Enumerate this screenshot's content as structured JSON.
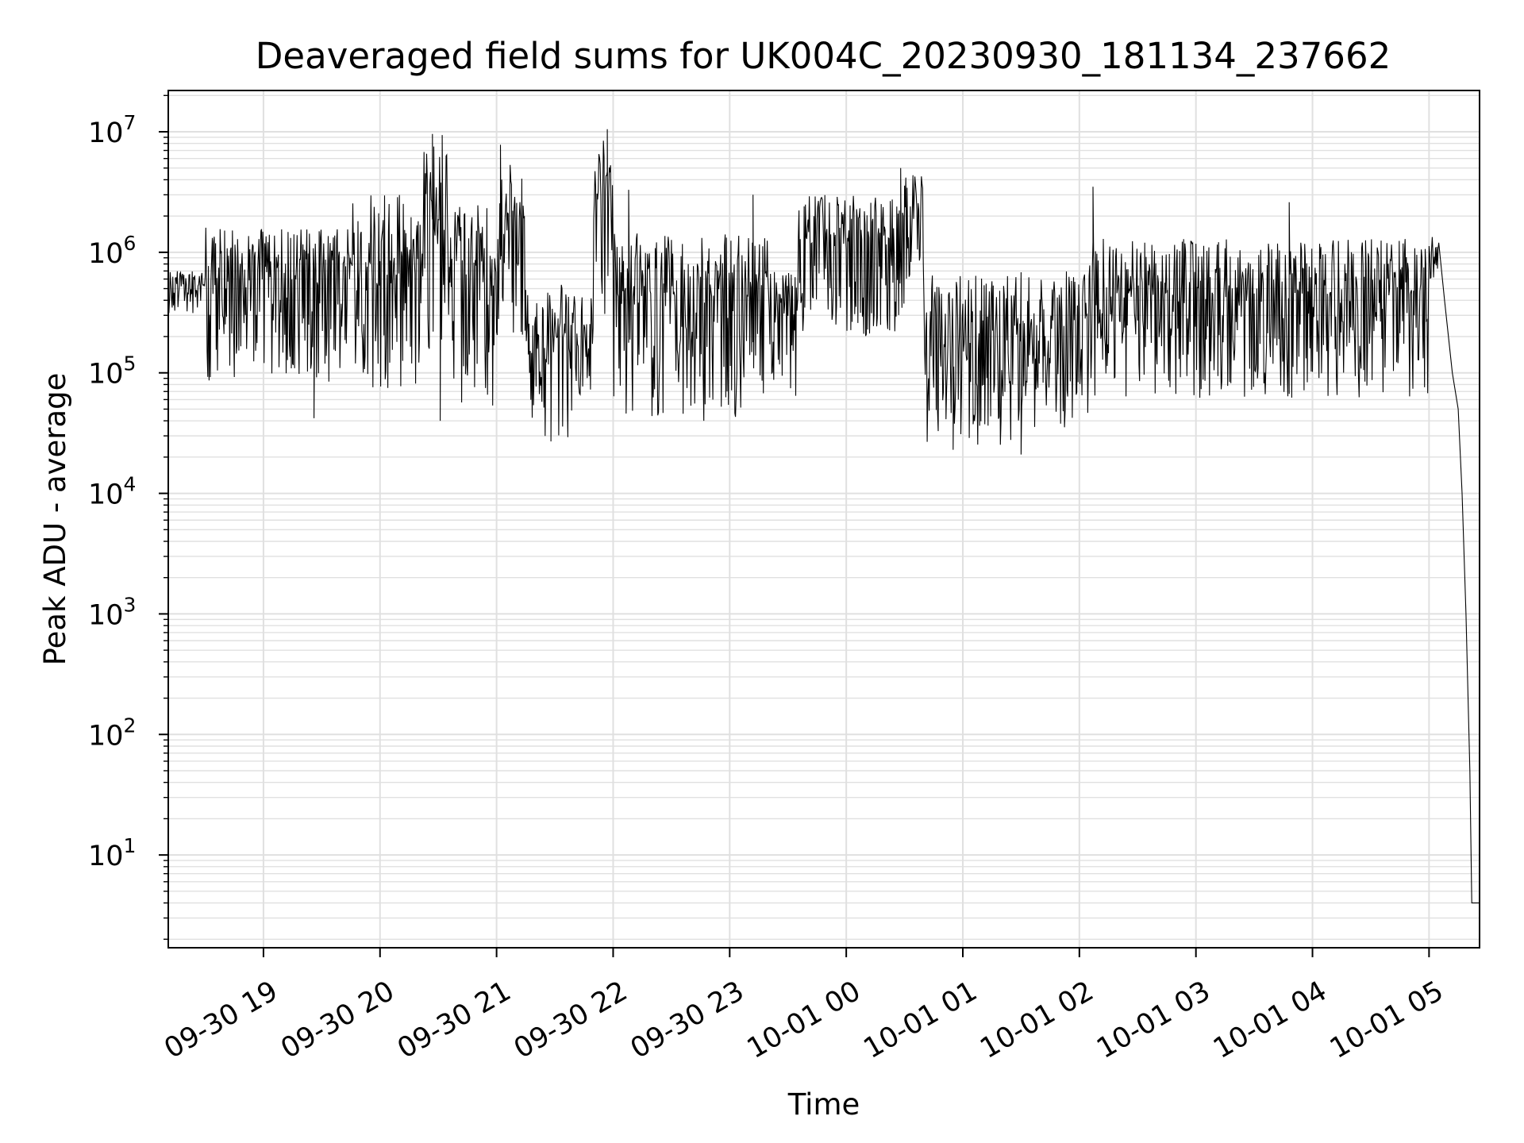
{
  "chart_data": {
    "type": "line",
    "title": "Deaveraged field sums for UK004C_20230930_181134_237662",
    "xlabel": "Time",
    "ylabel": "Peak ADU - average",
    "yscale": "log",
    "grid": true,
    "line_color": "#000000",
    "grid_color": "#e0e0e0",
    "xlim": [
      "2023-09-30 18:11",
      "2023-10-01 05:26"
    ],
    "ylim": [
      1.7,
      22000000
    ],
    "x_ticks": [
      {
        "label": "09-30 19",
        "t": "2023-09-30 19:00"
      },
      {
        "label": "09-30 20",
        "t": "2023-09-30 20:00"
      },
      {
        "label": "09-30 21",
        "t": "2023-09-30 21:00"
      },
      {
        "label": "09-30 22",
        "t": "2023-09-30 22:00"
      },
      {
        "label": "09-30 23",
        "t": "2023-09-30 23:00"
      },
      {
        "label": "10-01 00",
        "t": "2023-10-01 00:00"
      },
      {
        "label": "10-01 01",
        "t": "2023-10-01 01:00"
      },
      {
        "label": "10-01 02",
        "t": "2023-10-01 02:00"
      },
      {
        "label": "10-01 03",
        "t": "2023-10-01 03:00"
      },
      {
        "label": "10-01 04",
        "t": "2023-10-01 04:00"
      },
      {
        "label": "10-01 05",
        "t": "2023-10-01 05:00"
      }
    ],
    "y_ticks": [
      {
        "base": "10",
        "exp": "1",
        "value": 10
      },
      {
        "base": "10",
        "exp": "2",
        "value": 100
      },
      {
        "base": "10",
        "exp": "3",
        "value": 1000
      },
      {
        "base": "10",
        "exp": "4",
        "value": 10000
      },
      {
        "base": "10",
        "exp": "5",
        "value": 100000
      },
      {
        "base": "10",
        "exp": "6",
        "value": 1000000
      },
      {
        "base": "10",
        "exp": "7",
        "value": 10000000
      }
    ],
    "segments": [
      {
        "start": "2023-09-30 18:11",
        "end": "2023-09-30 18:30",
        "low": 300000,
        "high": 700000
      },
      {
        "start": "2023-09-30 18:30",
        "end": "2023-09-30 19:45",
        "low": 80000,
        "high": 1600000
      },
      {
        "start": "2023-09-30 19:45",
        "end": "2023-09-30 20:20",
        "low": 70000,
        "high": 3000000
      },
      {
        "start": "2023-09-30 20:20",
        "end": "2023-09-30 20:35",
        "low": 100000,
        "high": 8000000
      },
      {
        "start": "2023-09-30 20:35",
        "end": "2023-09-30 21:00",
        "low": 50000,
        "high": 2500000
      },
      {
        "start": "2023-09-30 21:00",
        "end": "2023-09-30 21:15",
        "low": 200000,
        "high": 6000000
      },
      {
        "start": "2023-09-30 21:15",
        "end": "2023-09-30 21:50",
        "low": 27000,
        "high": 550000
      },
      {
        "start": "2023-09-30 21:50",
        "end": "2023-09-30 22:00",
        "low": 300000,
        "high": 9000000
      },
      {
        "start": "2023-09-30 22:00",
        "end": "2023-09-30 23:20",
        "low": 40000,
        "high": 1500000
      },
      {
        "start": "2023-09-30 23:20",
        "end": "2023-09-30 23:35",
        "low": 60000,
        "high": 700000
      },
      {
        "start": "2023-09-30 23:35",
        "end": "2023-10-01 00:30",
        "low": 200000,
        "high": 3000000
      },
      {
        "start": "2023-10-01 00:30",
        "end": "2023-10-01 00:40",
        "low": 600000,
        "high": 4500000
      },
      {
        "start": "2023-10-01 00:40",
        "end": "2023-10-01 01:25",
        "low": 25000,
        "high": 650000
      },
      {
        "start": "2023-10-01 01:25",
        "end": "2023-10-01 02:05",
        "low": 35000,
        "high": 700000
      },
      {
        "start": "2023-10-01 02:05",
        "end": "2023-10-01 05:00",
        "low": 60000,
        "high": 1300000
      },
      {
        "start": "2023-10-01 05:00",
        "end": "2023-10-01 05:05",
        "low": 600000,
        "high": 1400000
      }
    ],
    "spikes": [
      {
        "t": "2023-09-30 20:27",
        "value": 9600000
      },
      {
        "t": "2023-09-30 20:32",
        "value": 9400000
      },
      {
        "t": "2023-09-30 21:02",
        "value": 7800000
      },
      {
        "t": "2023-09-30 21:57",
        "value": 10500000
      },
      {
        "t": "2023-09-30 22:08",
        "value": 3300000
      },
      {
        "t": "2023-09-30 23:12",
        "value": 3000000
      },
      {
        "t": "2023-10-01 00:28",
        "value": 5000000
      },
      {
        "t": "2023-10-01 02:07",
        "value": 3500000
      },
      {
        "t": "2023-10-01 03:48",
        "value": 2600000
      },
      {
        "t": "2023-09-30 19:26",
        "value": 42000
      },
      {
        "t": "2023-09-30 20:31",
        "value": 40000
      },
      {
        "t": "2023-09-30 21:28",
        "value": 27000
      },
      {
        "t": "2023-10-01 00:55",
        "value": 23000
      },
      {
        "t": "2023-10-01 01:30",
        "value": 21000
      }
    ],
    "tail": [
      {
        "t": "2023-10-01 05:05",
        "value": 1200000
      },
      {
        "t": "2023-10-01 05:08",
        "value": 400000
      },
      {
        "t": "2023-10-01 05:12",
        "value": 100000
      },
      {
        "t": "2023-10-01 05:15",
        "value": 50000
      },
      {
        "t": "2023-10-01 05:17",
        "value": 10000
      },
      {
        "t": "2023-10-01 05:19",
        "value": 1000
      },
      {
        "t": "2023-10-01 05:21",
        "value": 50
      },
      {
        "t": "2023-10-01 05:22",
        "value": 4
      },
      {
        "t": "2023-10-01 05:26",
        "value": 4
      }
    ]
  }
}
